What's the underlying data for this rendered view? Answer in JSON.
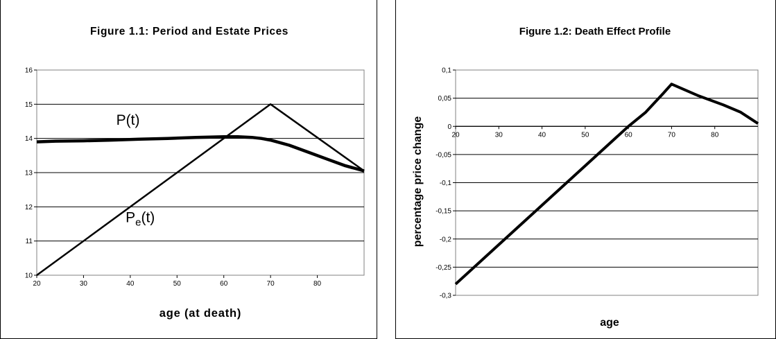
{
  "chart_data": [
    {
      "type": "line",
      "title": "Figure 1.1:  Period and Estate Prices",
      "xlabel": "age (at death)",
      "ylabel": "",
      "xlim": [
        20,
        90
      ],
      "ylim": [
        10,
        16
      ],
      "x_ticks": [
        "20",
        "30",
        "40",
        "50",
        "60",
        "70",
        "80"
      ],
      "y_ticks": [
        "10",
        "11",
        "12",
        "13",
        "14",
        "15",
        "16"
      ],
      "grid": "horizontal",
      "series": [
        {
          "name": "P(t)",
          "x": [
            20,
            24,
            30,
            36,
            42,
            48,
            54,
            60,
            63,
            66,
            68,
            70,
            74,
            78,
            82,
            86,
            90
          ],
          "y": [
            13.9,
            13.92,
            13.93,
            13.95,
            13.98,
            14.0,
            14.03,
            14.05,
            14.05,
            14.03,
            14.0,
            13.95,
            13.8,
            13.6,
            13.4,
            13.2,
            13.05
          ]
        },
        {
          "name": "Pe(t)",
          "x": [
            20,
            70,
            90
          ],
          "y": [
            10.0,
            15.0,
            13.05
          ]
        }
      ],
      "annotations": [
        {
          "text": "P(t)",
          "x": 37,
          "y": 14.4
        },
        {
          "text": "P",
          "sub": "e",
          "suffix": "(t)",
          "x": 39,
          "y": 11.55
        }
      ]
    },
    {
      "type": "line",
      "title": "Figure 1.2:  Death Effect Profile",
      "xlabel": "age",
      "ylabel": "percentage price change",
      "xlim": [
        20,
        90
      ],
      "ylim": [
        -0.3,
        0.1
      ],
      "x_ticks": [
        "20",
        "30",
        "40",
        "50",
        "60",
        "70",
        "80"
      ],
      "y_ticks": [
        "0,1",
        "0,05",
        "0",
        "-0,05",
        "-0,1",
        "-0,15",
        "-0,2",
        "-0,25",
        "-0,3"
      ],
      "grid": "horizontal",
      "series": [
        {
          "name": "",
          "x": [
            20,
            30,
            40,
            50,
            60,
            64,
            68,
            70,
            76,
            82,
            86,
            90
          ],
          "y": [
            -0.28,
            -0.21,
            -0.14,
            -0.07,
            0.0,
            0.025,
            0.058,
            0.075,
            0.055,
            0.038,
            0.025,
            0.005
          ]
        }
      ]
    }
  ]
}
